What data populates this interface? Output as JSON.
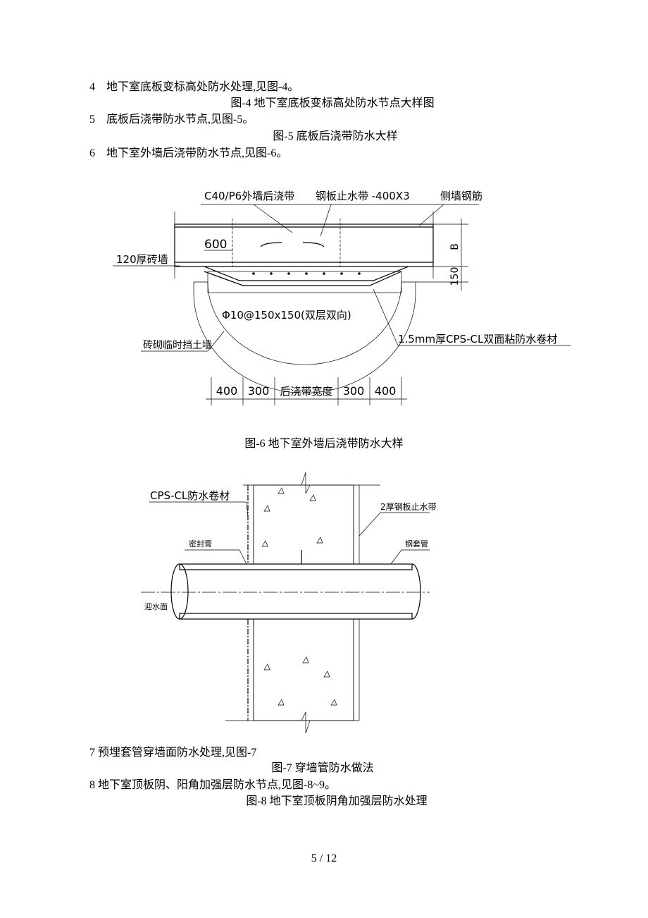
{
  "lines": [
    "4　地下室底板变标高处防水处理,见图-4。",
    "图-4  地下室底板变标高处防水节点大样图",
    "5　底板后浇带防水节点,见图-5。",
    "图-5  底板后浇带防水大样",
    "6　地下室外墙后浇带防水节点,见图-6。"
  ],
  "figure6": {
    "labels": [
      "C40/P6外墙后浇带",
      "钢板止水带 -400X3",
      "侧墙钢筋",
      "600",
      "120厚砖墙",
      "B",
      "150",
      "Φ10@150x150(双层双向)",
      "1.5mm厚CPS-CL双面粘防水卷材",
      "砖砌临时挡土墙"
    ],
    "dimensions": [
      "400",
      "300",
      "后浇带宽度",
      "300",
      "400"
    ],
    "caption": "图-6  地下室外墙后浇带防水大样"
  },
  "figure7": {
    "labels": [
      "CPS-CL防水卷材",
      "2厚钢板止水带",
      "密封膏",
      "钢套管",
      "迎水面"
    ]
  },
  "lines_after": [
    "7  预埋套管穿墙面防水处理,见图-7",
    "图-7  穿墙管防水做法",
    "8 地下室顶板阴、阳角加强层防水节点,见图-8~9。",
    "图-8 地下室顶板阴角加强层防水处理"
  ],
  "footer": {
    "page": "5 / 12"
  }
}
